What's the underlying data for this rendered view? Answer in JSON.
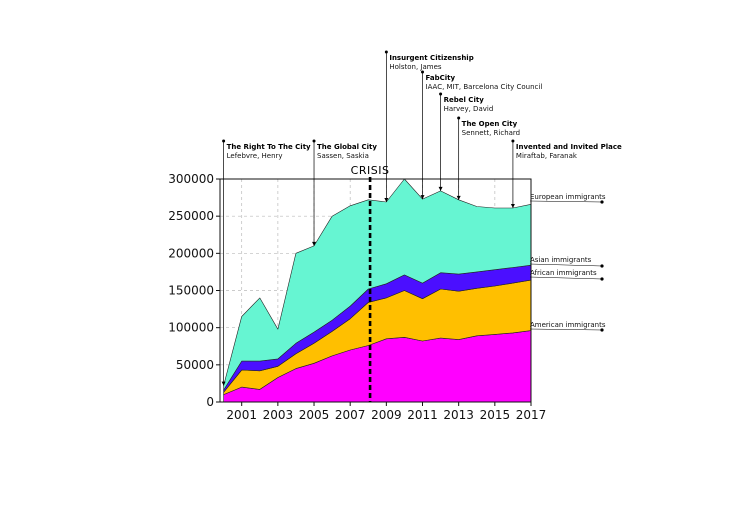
{
  "chart_data": {
    "type": "area",
    "stacked": true,
    "x": [
      2000,
      2001,
      2002,
      2003,
      2004,
      2005,
      2006,
      2007,
      2008,
      2009,
      2010,
      2011,
      2012,
      2013,
      2014,
      2015,
      2016,
      2017
    ],
    "ylim": [
      0,
      300000
    ],
    "xlim": [
      1999.8,
      2017
    ],
    "x_ticks": [
      "2001",
      "2003",
      "2005",
      "2007",
      "2009",
      "2011",
      "2013",
      "2015",
      "2017"
    ],
    "x_tick_values": [
      2001,
      2003,
      2005,
      2007,
      2009,
      2011,
      2013,
      2015,
      2017
    ],
    "y_ticks": [
      "0",
      "50000",
      "100000",
      "150000",
      "200000",
      "250000",
      "300000"
    ],
    "y_tick_values": [
      0,
      50000,
      100000,
      150000,
      200000,
      250000,
      300000
    ],
    "grid": true,
    "series": [
      {
        "name": "American immigrants",
        "color": "#ff00ff",
        "values": [
          10000,
          20000,
          17000,
          33000,
          45000,
          52000,
          62000,
          70000,
          76000,
          85000,
          87000,
          82000,
          86000,
          84000,
          89000,
          91000,
          93000,
          96000
        ]
      },
      {
        "name": "African immigrants",
        "color": "#ffbf00",
        "values": [
          3000,
          23000,
          25000,
          15000,
          20000,
          27000,
          33000,
          42000,
          58000,
          55000,
          63000,
          57000,
          66000,
          65000,
          64000,
          65000,
          67000,
          68000
        ]
      },
      {
        "name": "Asian immigrants",
        "color": "#4b0fff",
        "values": [
          3000,
          12000,
          13000,
          10000,
          14000,
          15000,
          15000,
          17000,
          18000,
          19000,
          21000,
          21000,
          22000,
          23000,
          22000,
          22000,
          21000,
          20000
        ]
      },
      {
        "name": "European immigrants",
        "color": "#66f5d2",
        "values": [
          6000,
          60000,
          85000,
          40000,
          121000,
          116000,
          140000,
          135000,
          120000,
          110000,
          129000,
          113000,
          110000,
          100000,
          88000,
          83000,
          80000,
          82000
        ]
      }
    ],
    "crisis": {
      "label": "CRISIS",
      "x": 2008.1
    },
    "annotations": [
      {
        "title": "The Right To The City",
        "sub": "Lefebvre, Henry",
        "x": 2000
      },
      {
        "title": "The Global City",
        "sub": "Sassen, Saskia",
        "x": 2005
      },
      {
        "title": "Insurgent Citizenship",
        "sub": "Holston, James",
        "x": 2009
      },
      {
        "title": "FabCity",
        "sub": "IAAC, MIT, Barcelona City Council",
        "x": 2011
      },
      {
        "title": "Rebel City",
        "sub": "Harvey, David",
        "x": 2012
      },
      {
        "title": "The Open City",
        "sub": "Sennett, Richard",
        "x": 2013
      },
      {
        "title": "Invented and Invited Place",
        "sub": "Miraftab, Faranak",
        "x": 2016
      }
    ]
  }
}
